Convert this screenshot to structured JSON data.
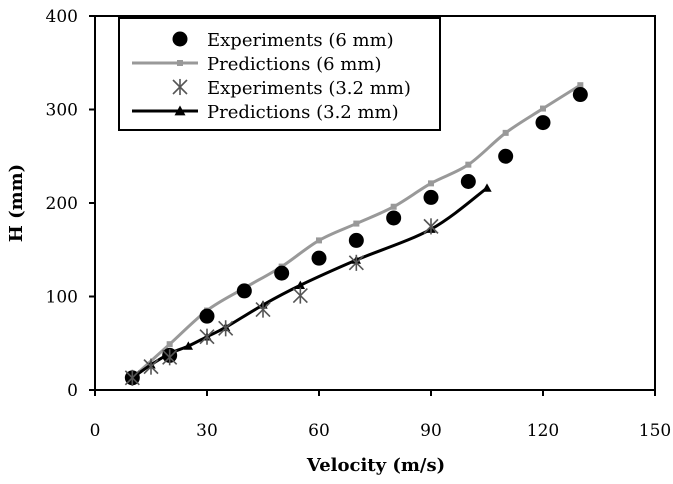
{
  "chart_data": {
    "type": "line",
    "title": "",
    "xlabel": "Velocity (m/s)",
    "ylabel": "H (mm)",
    "xlim": [
      0,
      150
    ],
    "ylim": [
      0,
      400
    ],
    "x_ticks": [
      "0",
      "30",
      "60",
      "90",
      "120",
      "150"
    ],
    "y_ticks": [
      "0",
      "100",
      "200",
      "300",
      "400"
    ],
    "grid": false,
    "legend_position": "top-left",
    "series": [
      {
        "name": "Experiments (6 mm)",
        "kind": "scatter",
        "marker": "circle",
        "color": "#000000",
        "x": [
          10,
          20,
          30,
          40,
          50,
          60,
          70,
          80,
          90,
          100,
          110,
          120,
          130
        ],
        "y": [
          13,
          37,
          79,
          106,
          125,
          141,
          160,
          184,
          206,
          223,
          250,
          286,
          316
        ]
      },
      {
        "name": "Predictions (6 mm)",
        "kind": "line",
        "marker": "square",
        "color": "#999999",
        "x": [
          10,
          20,
          30,
          40,
          50,
          60,
          70,
          80,
          90,
          100,
          110,
          120,
          130
        ],
        "y": [
          13,
          49,
          85,
          109,
          132,
          160,
          178,
          196,
          221,
          241,
          275,
          301,
          326
        ]
      },
      {
        "name": "Experiments (3.2 mm)",
        "kind": "scatter",
        "marker": "asterisk",
        "color": "#555555",
        "x": [
          10,
          15,
          20,
          30,
          35,
          45,
          55,
          70,
          90
        ],
        "y": [
          13,
          25,
          35,
          57,
          66,
          86,
          101,
          136,
          175
        ]
      },
      {
        "name": "Predictions (3.2 mm)",
        "kind": "line",
        "marker": "triangle",
        "color": "#000000",
        "x": [
          10,
          15,
          20,
          25,
          30,
          35,
          45,
          55,
          70,
          90,
          105
        ],
        "y": [
          13,
          27,
          39,
          47,
          57,
          67,
          91,
          112,
          139,
          172,
          216
        ]
      }
    ]
  }
}
